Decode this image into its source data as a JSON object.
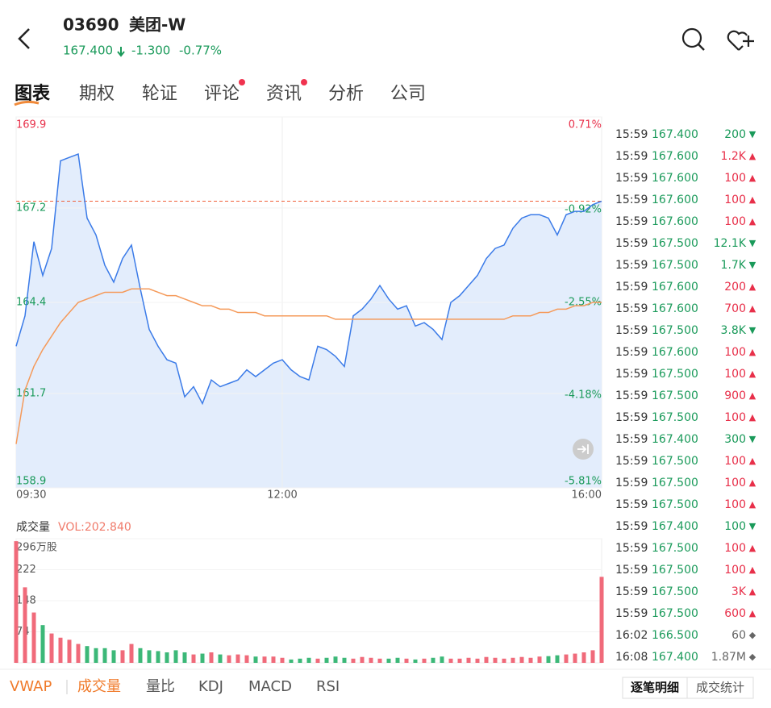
{
  "header": {
    "code": "03690",
    "name": "美团-W",
    "price": "167.400",
    "change": "-1.300",
    "change_pct": "-0.77%"
  },
  "tabs": [
    "图表",
    "期权",
    "轮证",
    "评论",
    "资讯",
    "分析",
    "公司"
  ],
  "chart_data": [
    {
      "type": "line",
      "xlim": [
        0,
        66
      ],
      "xticks": [
        {
          "value": 0,
          "label": "09:30"
        },
        {
          "value": 30,
          "label": "12:00"
        },
        {
          "value": 66,
          "label": "16:00"
        }
      ],
      "ylim": [
        158.9,
        169.9
      ],
      "yticks": [
        169.9,
        167.2,
        164.4,
        161.7,
        158.9
      ],
      "y2lim": [
        -5.81,
        0.71
      ],
      "y2ticks": [
        {
          "value": 0.71,
          "label": "0.71%"
        },
        {
          "value": -0.92,
          "label": "-0.92%"
        },
        {
          "value": -2.55,
          "label": "-2.55%"
        },
        {
          "value": -4.18,
          "label": "-4.18%"
        },
        {
          "value": -5.81,
          "label": "-5.81%"
        }
      ],
      "last_price": 167.4,
      "series": [
        {
          "color": "#3b7be8",
          "values": [
            163.1,
            164.0,
            166.2,
            165.2,
            166.0,
            168.6,
            168.7,
            168.8,
            166.9,
            166.4,
            165.5,
            165.0,
            165.7,
            166.1,
            164.8,
            163.6,
            163.1,
            162.7,
            162.6,
            161.6,
            161.9,
            161.4,
            162.1,
            161.9,
            162.0,
            162.1,
            162.4,
            162.2,
            162.4,
            162.6,
            162.7,
            162.4,
            162.2,
            162.1,
            163.1,
            163.0,
            162.8,
            162.5,
            164.0,
            164.2,
            164.5,
            164.9,
            164.5,
            164.2,
            164.3,
            163.7,
            163.8,
            163.6,
            163.3,
            164.4,
            164.6,
            164.9,
            165.2,
            165.7,
            166.0,
            166.1,
            166.6,
            166.9,
            167.0,
            167.0,
            166.9,
            166.4,
            167.0,
            167.1,
            167.1,
            167.3,
            167.4
          ]
        },
        {
          "color": "#f59a5a",
          "values": [
            160.2,
            161.8,
            162.5,
            163.0,
            163.4,
            163.8,
            164.1,
            164.4,
            164.5,
            164.6,
            164.7,
            164.7,
            164.7,
            164.8,
            164.8,
            164.8,
            164.7,
            164.6,
            164.6,
            164.5,
            164.4,
            164.3,
            164.3,
            164.2,
            164.2,
            164.1,
            164.1,
            164.1,
            164.0,
            164.0,
            164.0,
            164.0,
            164.0,
            164.0,
            164.0,
            164.0,
            163.9,
            163.9,
            163.9,
            163.9,
            163.9,
            163.9,
            163.9,
            163.9,
            163.9,
            163.9,
            163.9,
            163.9,
            163.9,
            163.9,
            163.9,
            163.9,
            163.9,
            163.9,
            163.9,
            163.9,
            164.0,
            164.0,
            164.0,
            164.1,
            164.1,
            164.2,
            164.2,
            164.3,
            164.3,
            164.4,
            164.4
          ]
        }
      ]
    },
    {
      "type": "bar",
      "title": "成交量",
      "subtitle": "VOL:202.840",
      "xlim": [
        0,
        66
      ],
      "ylim": [
        0,
        296
      ],
      "yticks": [
        {
          "value": 296,
          "label": "296万股"
        },
        222,
        148,
        74
      ],
      "values": [
        290,
        180,
        120,
        90,
        70,
        60,
        55,
        45,
        40,
        35,
        35,
        30,
        30,
        45,
        35,
        30,
        28,
        25,
        30,
        25,
        20,
        22,
        25,
        20,
        18,
        20,
        18,
        15,
        15,
        15,
        12,
        8,
        10,
        12,
        10,
        12,
        15,
        12,
        10,
        14,
        12,
        10,
        10,
        12,
        10,
        8,
        10,
        12,
        15,
        10,
        10,
        12,
        10,
        14,
        12,
        10,
        12,
        14,
        12,
        15,
        16,
        18,
        20,
        22,
        25,
        30,
        205
      ]
    }
  ],
  "trades": [
    [
      "15:59",
      "167.400",
      "200",
      "▼"
    ],
    [
      "15:59",
      "167.600",
      "1.2K",
      "▲"
    ],
    [
      "15:59",
      "167.600",
      "100",
      "▲"
    ],
    [
      "15:59",
      "167.600",
      "100",
      "▲"
    ],
    [
      "15:59",
      "167.600",
      "100",
      "▲"
    ],
    [
      "15:59",
      "167.500",
      "12.1K",
      "▼"
    ],
    [
      "15:59",
      "167.500",
      "1.7K",
      "▼"
    ],
    [
      "15:59",
      "167.600",
      "200",
      "▲"
    ],
    [
      "15:59",
      "167.600",
      "700",
      "▲"
    ],
    [
      "15:59",
      "167.500",
      "3.8K",
      "▼"
    ],
    [
      "15:59",
      "167.600",
      "100",
      "▲"
    ],
    [
      "15:59",
      "167.500",
      "100",
      "▲"
    ],
    [
      "15:59",
      "167.500",
      "900",
      "▲"
    ],
    [
      "15:59",
      "167.500",
      "100",
      "▲"
    ],
    [
      "15:59",
      "167.400",
      "300",
      "▼"
    ],
    [
      "15:59",
      "167.500",
      "100",
      "▲"
    ],
    [
      "15:59",
      "167.500",
      "100",
      "▲"
    ],
    [
      "15:59",
      "167.500",
      "100",
      "▲"
    ],
    [
      "15:59",
      "167.400",
      "100",
      "▼"
    ],
    [
      "15:59",
      "167.500",
      "100",
      "▲"
    ],
    [
      "15:59",
      "167.500",
      "100",
      "▲"
    ],
    [
      "15:59",
      "167.500",
      "3K",
      "▲"
    ],
    [
      "15:59",
      "167.500",
      "600",
      "▲"
    ],
    [
      "16:02",
      "166.500",
      "60",
      "◆"
    ],
    [
      "16:08",
      "167.400",
      "1.87M",
      "◆"
    ]
  ],
  "indicator_tabs": [
    "VWAP",
    "成交量",
    "量比",
    "KDJ",
    "MACD",
    "RSI"
  ],
  "list_tabs": [
    "逐笔明细",
    "成交统计"
  ]
}
